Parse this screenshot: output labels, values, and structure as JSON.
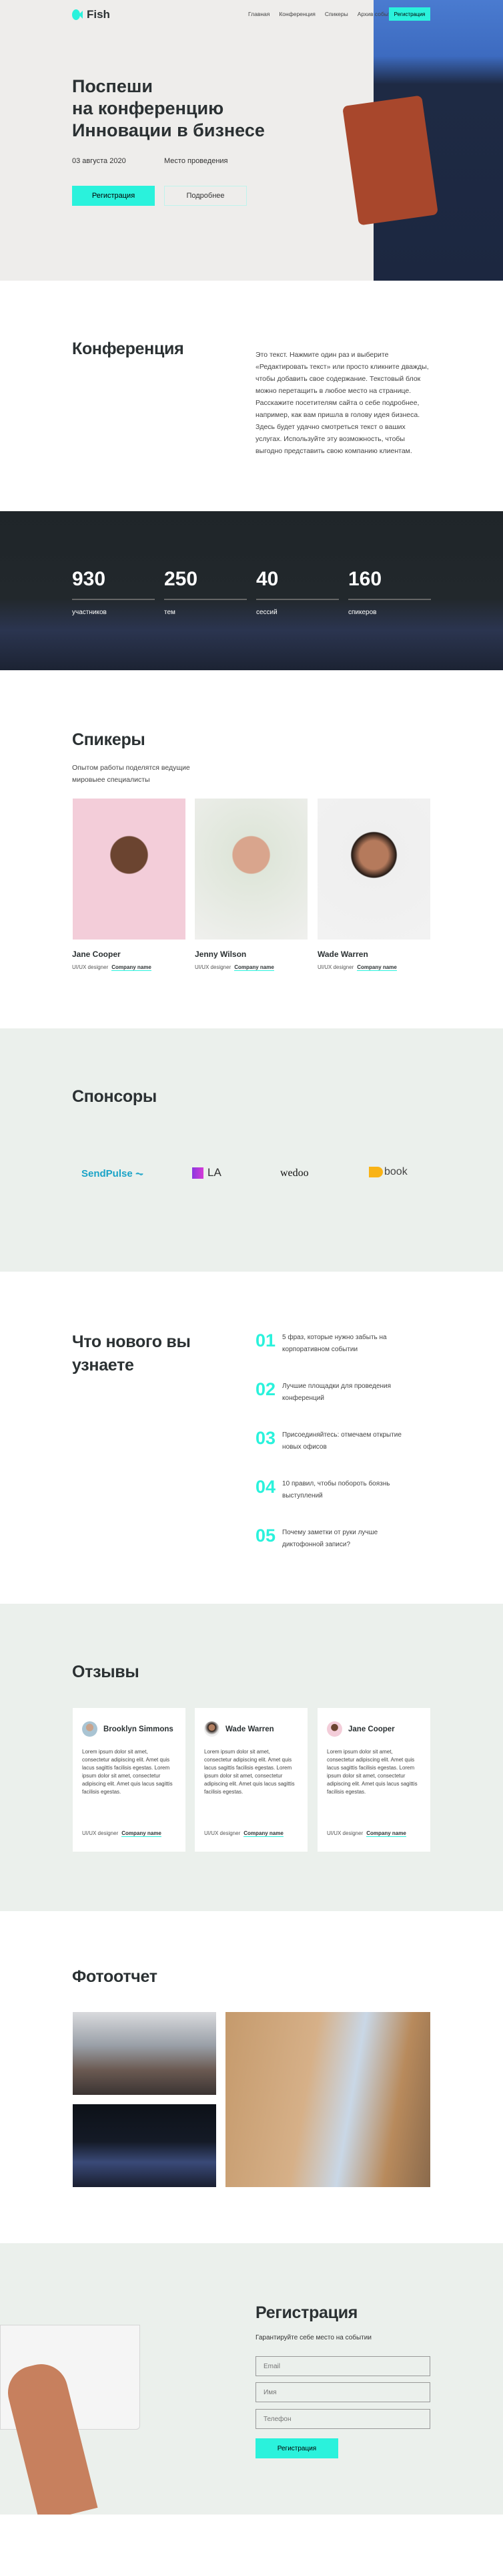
{
  "colors": {
    "accent": "#2af2dc",
    "dark": "#1f2529",
    "light_bg": "#ebf0ec",
    "hero_bg": "#eeedeb",
    "text": "#2b3133"
  },
  "header": {
    "logo": "Fish",
    "logo_icon": "fish-icon",
    "nav": [
      {
        "label": "Главная"
      },
      {
        "label": "Конференция"
      },
      {
        "label": "Спикеры"
      },
      {
        "label": "Архив событий"
      }
    ],
    "cta": "Регистрация"
  },
  "hero": {
    "title_lines": [
      "Поспеши",
      "на конференцию",
      "Инновации в бизнесе"
    ],
    "date": "03 августа 2020",
    "place": "Место проведения",
    "primary": "Регистрация",
    "secondary": "Подробнее"
  },
  "conference": {
    "title": "Конференция",
    "text": "Это текст. Нажмите один раз и выберите «Редактировать текст» или просто кликните дважды, чтобы добавить свое содержание. Текстовый блок можно перетащить в любое место на странице. Расскажите посетителям сайта о себе подробнее, например, как вам пришла в голову идея бизнеса. Здесь будет удачно смотреться текст о ваших услугах. Используйте эту возможность, чтобы выгодно представить свою компанию клиентам."
  },
  "stats": [
    {
      "value": "930",
      "label": "участников"
    },
    {
      "value": "250",
      "label": "тем"
    },
    {
      "value": "40",
      "label": "сессий"
    },
    {
      "value": "160",
      "label": "спикеров"
    }
  ],
  "speakers": {
    "title": "Спикеры",
    "subtitle": "Опытом работы поделятся ведущие мировыее специалисты",
    "items": [
      {
        "name": "Jane Cooper",
        "role": "UI/UX designer",
        "company": "Company name"
      },
      {
        "name": "Jenny Wilson",
        "role": "UI/UX designer",
        "company": "Company name"
      },
      {
        "name": "Wade Warren",
        "role": "UI/UX designer",
        "company": "Company name"
      }
    ]
  },
  "sponsors": {
    "title": "Спонсоры",
    "logos": [
      "SendPulse",
      "LA",
      "wedoo",
      "book"
    ]
  },
  "learn": {
    "title": "Что нового вы узнаете",
    "items": [
      {
        "num": "01",
        "text": "5 фраз, которые нужно забыть на корпоративном событии"
      },
      {
        "num": "02",
        "text": "Лучшие площадки для проведения конференций"
      },
      {
        "num": "03",
        "text": "Присоединяйтесь: отмечаем открытие новых офисов"
      },
      {
        "num": "04",
        "text": "10 правил, чтобы побороть боязнь выступлений"
      },
      {
        "num": "05",
        "text": "Почему заметки от руки лучше диктофонной записи?"
      }
    ]
  },
  "reviews": {
    "title": "Отзывы",
    "items": [
      {
        "name": "Brooklyn Simmons",
        "text": "Lorem ipsum dolor sit amet, consectetur adipiscing elit. Amet quis lacus sagittis facilisis egestas. Lorem ipsum dolor sit amet, consectetur adipiscing elit. Amet quis lacus sagittis facilisis egestas.",
        "role": "UI/UX designer",
        "company": "Company name"
      },
      {
        "name": "Wade Warren",
        "text": "Lorem ipsum dolor sit amet, consectetur adipiscing elit. Amet quis lacus sagittis facilisis egestas. Lorem ipsum dolor sit amet, consectetur adipiscing elit. Amet quis lacus sagittis facilisis egestas.",
        "role": "UI/UX designer",
        "company": "Company name"
      },
      {
        "name": "Jane Cooper",
        "text": "Lorem ipsum dolor sit amet, consectetur adipiscing elit. Amet quis lacus sagittis facilisis egestas. Lorem ipsum dolor sit amet, consectetur adipiscing elit. Amet quis lacus sagittis facilisis egestas.",
        "role": "UI/UX designer",
        "company": "Company name"
      }
    ]
  },
  "photos": {
    "title": "Фотоотчет"
  },
  "registration": {
    "title": "Регистрация",
    "subtitle": "Гарантируйте себе место на событии",
    "email_placeholder": "Email",
    "name_placeholder": "Имя",
    "phone_placeholder": "Телефон",
    "submit": "Регистрация"
  }
}
